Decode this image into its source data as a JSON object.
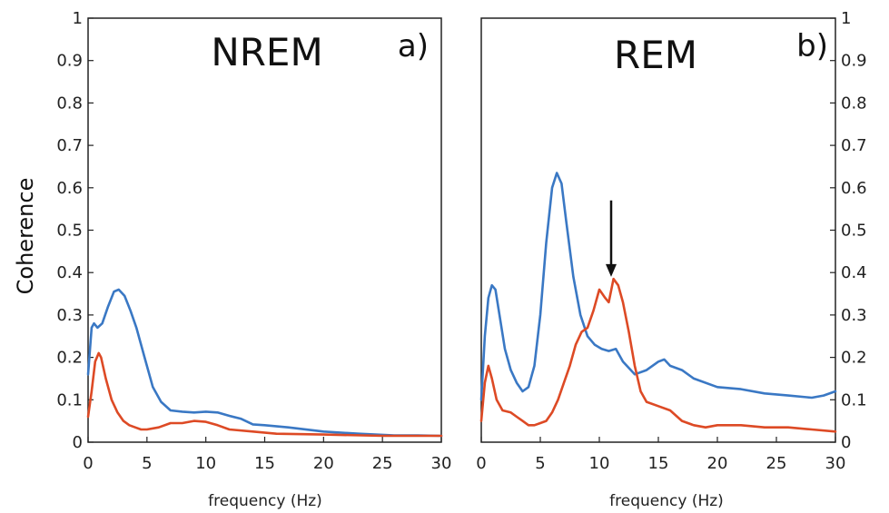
{
  "colors": {
    "series_blue": "#3a78c4",
    "series_red": "#dd4a25",
    "axis": "#222222"
  },
  "chart_data": [
    {
      "type": "line",
      "title": "NREM",
      "tag": "a)",
      "xlabel": "frequency (Hz)",
      "ylabel": "Coherence",
      "xlim": [
        0,
        30
      ],
      "ylim": [
        0,
        1
      ],
      "xticks": [
        "0",
        "5",
        "10",
        "15",
        "20",
        "25",
        "30"
      ],
      "yticks": [
        "0",
        "0.1",
        "0.2",
        "0.3",
        "0.4",
        "0.5",
        "0.6",
        "0.7",
        "0.8",
        "0.9",
        "1"
      ],
      "ytick_side": "left",
      "grid": false,
      "series": [
        {
          "color": "#3a78c4",
          "x": [
            0,
            0.3,
            0.5,
            0.8,
            1.2,
            1.7,
            2.2,
            2.6,
            3.1,
            3.6,
            4.1,
            4.8,
            5.5,
            6.2,
            7,
            8,
            9,
            10,
            11,
            12,
            13,
            14,
            15,
            17,
            20,
            23,
            26,
            28,
            30
          ],
          "y": [
            0.16,
            0.27,
            0.28,
            0.27,
            0.28,
            0.32,
            0.355,
            0.36,
            0.345,
            0.31,
            0.27,
            0.2,
            0.13,
            0.095,
            0.075,
            0.072,
            0.07,
            0.072,
            0.07,
            0.062,
            0.055,
            0.042,
            0.04,
            0.035,
            0.025,
            0.02,
            0.016,
            0.016,
            0.015
          ]
        },
        {
          "color": "#dd4a25",
          "x": [
            0,
            0.3,
            0.6,
            0.9,
            1.1,
            1.5,
            2,
            2.5,
            3,
            3.5,
            4,
            4.5,
            5,
            6,
            7,
            8,
            9,
            10,
            11,
            12,
            14,
            16,
            20,
            25,
            30
          ],
          "y": [
            0.06,
            0.12,
            0.19,
            0.21,
            0.2,
            0.15,
            0.1,
            0.07,
            0.05,
            0.04,
            0.035,
            0.03,
            0.03,
            0.035,
            0.045,
            0.045,
            0.05,
            0.048,
            0.04,
            0.03,
            0.025,
            0.02,
            0.018,
            0.015,
            0.015
          ]
        }
      ]
    },
    {
      "type": "line",
      "title": "REM",
      "tag": "b)",
      "xlabel": "frequency (Hz)",
      "xlim": [
        0,
        30
      ],
      "ylim": [
        0,
        1
      ],
      "xticks": [
        "0",
        "5",
        "10",
        "15",
        "20",
        "25",
        "30"
      ],
      "yticks": [
        "0",
        "0.1",
        "0.2",
        "0.3",
        "0.4",
        "0.5",
        "0.6",
        "0.7",
        "0.8",
        "0.9",
        "1"
      ],
      "ytick_side": "right",
      "grid": false,
      "annotations": [
        {
          "type": "arrow",
          "x": 11,
          "y_from": 0.57,
          "y_to": 0.39
        }
      ],
      "series": [
        {
          "color": "#3a78c4",
          "x": [
            0,
            0.3,
            0.6,
            0.9,
            1.2,
            1.6,
            2,
            2.5,
            3,
            3.5,
            4,
            4.5,
            5,
            5.5,
            6,
            6.4,
            6.8,
            7.2,
            7.8,
            8.4,
            9,
            9.6,
            10.2,
            10.8,
            11.4,
            12,
            13,
            14,
            15,
            15.5,
            16,
            17,
            18,
            20,
            22,
            24,
            26,
            28,
            29,
            30
          ],
          "y": [
            0.1,
            0.25,
            0.34,
            0.37,
            0.36,
            0.29,
            0.22,
            0.17,
            0.14,
            0.12,
            0.13,
            0.18,
            0.3,
            0.47,
            0.6,
            0.635,
            0.61,
            0.52,
            0.39,
            0.3,
            0.25,
            0.23,
            0.22,
            0.215,
            0.22,
            0.19,
            0.16,
            0.17,
            0.19,
            0.195,
            0.18,
            0.17,
            0.15,
            0.13,
            0.125,
            0.115,
            0.11,
            0.105,
            0.11,
            0.12
          ]
        },
        {
          "color": "#dd4a25",
          "x": [
            0,
            0.3,
            0.6,
            0.9,
            1.3,
            1.8,
            2.5,
            3,
            3.5,
            4,
            4.5,
            5,
            5.5,
            6,
            6.5,
            7,
            7.5,
            8,
            8.5,
            9,
            9.5,
            10,
            10.5,
            10.8,
            11.2,
            11.6,
            12,
            12.5,
            13,
            13.5,
            14,
            15,
            16,
            17,
            18,
            19,
            20,
            22,
            24,
            26,
            28,
            30
          ],
          "y": [
            0.05,
            0.14,
            0.18,
            0.15,
            0.1,
            0.075,
            0.07,
            0.06,
            0.05,
            0.04,
            0.04,
            0.045,
            0.05,
            0.07,
            0.1,
            0.14,
            0.18,
            0.23,
            0.26,
            0.27,
            0.31,
            0.36,
            0.34,
            0.33,
            0.385,
            0.37,
            0.33,
            0.26,
            0.18,
            0.12,
            0.095,
            0.085,
            0.075,
            0.05,
            0.04,
            0.035,
            0.04,
            0.04,
            0.035,
            0.035,
            0.03,
            0.025
          ]
        }
      ]
    }
  ]
}
